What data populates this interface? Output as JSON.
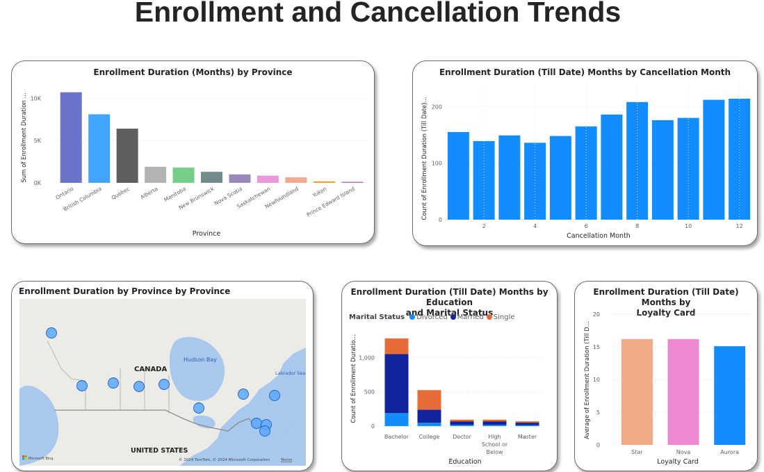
{
  "page": {
    "title": "Enrollment and Cancellation Trends"
  },
  "charts": {
    "province_bar": {
      "title": "Enrollment Duration (Months) by Province",
      "xlabel": "Province",
      "ylabel": "Sum of Enrollment Duration ...",
      "ticks": [
        "0K",
        "5K",
        "10K"
      ]
    },
    "cancellation_bar": {
      "title": "Enrollment Duration (Till Date) Months by Cancellation Month",
      "xlabel": "Cancellation Month",
      "ylabel": "Count of Enrollment Duration (Till Date)...",
      "ticks": [
        "0",
        "100",
        "200"
      ]
    },
    "map": {
      "title": "Enrollment Duration by Province by Province",
      "labels": {
        "canada": "CANADA",
        "us": "UNITED STATES",
        "hudson": "Hudson Bay",
        "labrador": "Labrador Sea"
      },
      "attribution": "© 2024 TomTom, © 2024 Microsoft Corporation",
      "terms": "Terms",
      "bing": "Microsoft Bing"
    },
    "education_bar": {
      "title_line1": "Enrollment Duration (Till Date) Months by Education",
      "title_line2": "and Marital Status",
      "legend_title": "Marital Status",
      "legend": [
        {
          "name": "Divorced",
          "color": "#118dff"
        },
        {
          "name": "Married",
          "color": "#12239e"
        },
        {
          "name": "Single",
          "color": "#e66c37"
        }
      ],
      "xlabel": "Education",
      "ylabel": "Count of Enrollment Duratio...",
      "ticks": [
        "0",
        "500",
        "1,000"
      ]
    },
    "loyalty_bar": {
      "title_line1": "Enrollment Duration (Till Date) Months by",
      "title_line2": "Loyalty Card",
      "xlabel": "Loyalty Card",
      "ylabel": "Average of Enrollment Duration (Till D...",
      "ticks": [
        "0",
        "5",
        "10",
        "15",
        "20"
      ]
    }
  },
  "chart_data": [
    {
      "type": "bar",
      "title": "Enrollment Duration (Months) by Province",
      "xlabel": "Province",
      "ylabel": "Sum of Enrollment Duration ...",
      "categories": [
        "Ontario",
        "British Columbia",
        "Quebec",
        "Alberta",
        "Manitoba",
        "New Brunswick",
        "Nova Scotia",
        "Saskatchewan",
        "Newfoundland",
        "Yukon",
        "Prince Edward Island"
      ],
      "values": [
        10700,
        8100,
        6400,
        1900,
        1800,
        1300,
        1000,
        850,
        650,
        180,
        120
      ],
      "colors": [
        "#6b74c8",
        "#41a5ff",
        "#5f5f5f",
        "#b3b3b3",
        "#76cf88",
        "#738c8b",
        "#9a88bd",
        "#ea97dc",
        "#f2a98f",
        "#f2a235",
        "#b974b0"
      ],
      "ylim": [
        0,
        11500
      ]
    },
    {
      "type": "bar",
      "title": "Enrollment Duration (Till Date) Months by Cancellation Month",
      "xlabel": "Cancellation Month",
      "ylabel": "Count of Enrollment Duration (Till Date)...",
      "x": [
        1,
        2,
        3,
        4,
        5,
        6,
        7,
        8,
        9,
        10,
        11,
        12
      ],
      "x_ticks": [
        2,
        4,
        6,
        8,
        10,
        12
      ],
      "values": [
        155,
        139,
        149,
        136,
        148,
        165,
        186,
        208,
        176,
        180,
        212,
        214
      ],
      "color": "#118dff",
      "ylim": [
        0,
        225
      ]
    },
    {
      "type": "bar",
      "stacked": true,
      "title": "Enrollment Duration (Till Date) Months by Education and Marital Status",
      "xlabel": "Education",
      "ylabel": "Count of Enrollment Duratio...",
      "categories": [
        "Bachelor",
        "College",
        "Doctor",
        "High School or Below",
        "Master"
      ],
      "category_lines": [
        [
          "Bachelor"
        ],
        [
          "College"
        ],
        [
          "Doctor"
        ],
        [
          "High",
          "School or",
          "Below"
        ],
        [
          "Master"
        ]
      ],
      "series": [
        {
          "name": "Divorced",
          "color": "#118dff",
          "values": [
            190,
            50,
            20,
            20,
            15
          ]
        },
        {
          "name": "Married",
          "color": "#12239e",
          "values": [
            860,
            190,
            50,
            50,
            35
          ]
        },
        {
          "name": "Single",
          "color": "#e66c37",
          "values": [
            230,
            285,
            25,
            25,
            20
          ]
        }
      ],
      "ylim": [
        0,
        1400
      ]
    },
    {
      "type": "bar",
      "title": "Enrollment Duration (Till Date) Months by Loyalty Card",
      "xlabel": "Loyalty Card",
      "ylabel": "Average of Enrollment Duration (Till D...",
      "categories": [
        "Star",
        "Nova",
        "Aurora"
      ],
      "values": [
        16.2,
        16.2,
        15.1
      ],
      "colors": [
        "#f1a988",
        "#ed8ad2",
        "#118dff"
      ],
      "ylim": [
        0,
        20
      ]
    }
  ]
}
